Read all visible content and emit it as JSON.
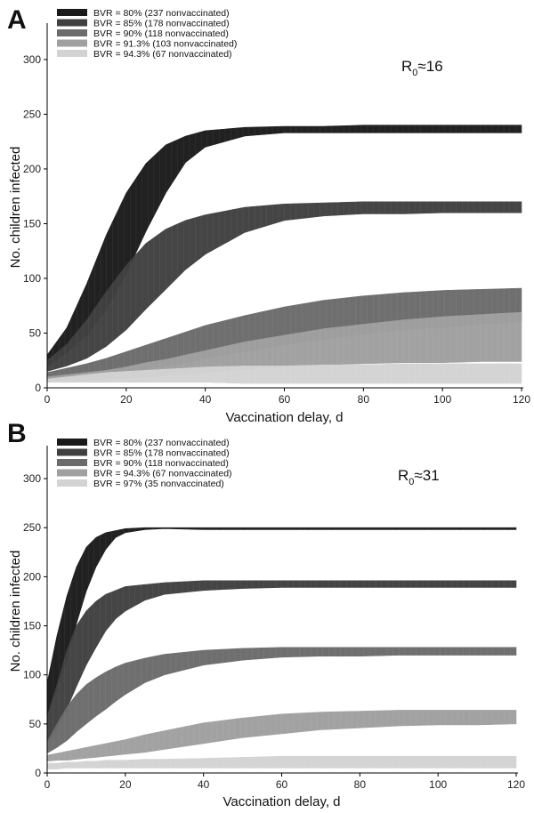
{
  "chart_data": [
    {
      "panel_label": "A",
      "type": "area",
      "annotation": {
        "base": "R",
        "subscript": "0",
        "text": "≈16"
      },
      "xlabel": "Vaccination delay, d",
      "ylabel": "No. children infected",
      "xlim": [
        0,
        120
      ],
      "ylim": [
        0,
        330
      ],
      "xticks": [
        0,
        20,
        40,
        60,
        80,
        100,
        120
      ],
      "yticks": [
        0,
        50,
        100,
        150,
        200,
        250,
        300
      ],
      "legend_position": "top-left",
      "x": [
        0,
        5,
        10,
        15,
        20,
        25,
        30,
        35,
        40,
        50,
        60,
        70,
        80,
        90,
        100,
        110,
        120
      ],
      "series": [
        {
          "name": "BVR = 80% (237 nonvaccinated)",
          "color": "#1a1a1a",
          "upper": [
            30,
            55,
            95,
            140,
            178,
            205,
            222,
            230,
            235,
            238,
            239,
            239,
            240,
            240,
            240,
            240,
            240
          ],
          "lower": [
            20,
            32,
            48,
            72,
            104,
            143,
            178,
            206,
            220,
            230,
            233,
            233,
            233,
            233,
            233,
            233,
            233
          ]
        },
        {
          "name": "BVR = 85% (178 nonvaccinated)",
          "color": "#404040",
          "upper": [
            25,
            40,
            62,
            88,
            112,
            132,
            145,
            153,
            158,
            165,
            168,
            169,
            170,
            170,
            170,
            170,
            170
          ],
          "lower": [
            15,
            20,
            27,
            38,
            53,
            72,
            90,
            108,
            122,
            142,
            153,
            157,
            159,
            159,
            160,
            160,
            160
          ]
        },
        {
          "name": "BVR = 90% (118 nonvaccinated)",
          "color": "#6b6b6b",
          "upper": [
            14,
            18,
            22,
            27,
            33,
            39,
            45,
            51,
            57,
            66,
            74,
            80,
            84,
            87,
            89,
            90,
            91
          ],
          "lower": [
            8,
            9,
            10,
            12,
            14,
            17,
            20,
            23,
            27,
            33,
            39,
            44,
            49,
            53,
            55,
            58,
            60
          ]
        },
        {
          "name": "BVR = 91.3% (103 nonvaccinated)",
          "color": "#a0a0a0",
          "upper": [
            10,
            12,
            14,
            16,
            19,
            23,
            26,
            30,
            34,
            42,
            48,
            54,
            58,
            62,
            65,
            67,
            69
          ],
          "lower": [
            6,
            6,
            7,
            8,
            9,
            10,
            11,
            12,
            14,
            17,
            19,
            21,
            22,
            23,
            23,
            24,
            24
          ]
        },
        {
          "name": "BVR = 94.3% (67 nonvaccinated)",
          "color": "#d3d3d3",
          "upper": [
            8,
            10,
            12,
            14,
            15,
            16,
            17,
            18,
            19,
            20,
            20,
            21,
            21,
            22,
            22,
            22,
            22
          ],
          "lower": [
            5,
            5,
            5,
            5,
            5,
            5,
            5,
            5,
            5,
            4,
            4,
            4,
            4,
            4,
            4,
            4,
            4
          ]
        }
      ]
    },
    {
      "panel_label": "B",
      "type": "area",
      "annotation": {
        "base": "R",
        "subscript": "0",
        "text": "≈31"
      },
      "xlabel": "Vaccination delay, d",
      "ylabel": "No. children infected",
      "xlim": [
        0,
        120
      ],
      "ylim": [
        0,
        330
      ],
      "xticks": [
        0,
        20,
        40,
        60,
        80,
        100,
        120
      ],
      "yticks": [
        0,
        50,
        100,
        150,
        200,
        250,
        300
      ],
      "legend_position": "top-left",
      "x": [
        0,
        2.5,
        5,
        7.5,
        10,
        12.5,
        15,
        17.5,
        20,
        25,
        30,
        40,
        50,
        60,
        70,
        80,
        90,
        100,
        110,
        120
      ],
      "series": [
        {
          "name": "BVR = 80% (237 nonvaccinated)",
          "color": "#1a1a1a",
          "upper": [
            92,
            140,
            180,
            210,
            230,
            240,
            245,
            247,
            249,
            250,
            250,
            250,
            250,
            250,
            250,
            250,
            250,
            250,
            250,
            250
          ],
          "lower": [
            58,
            85,
            115,
            152,
            185,
            210,
            228,
            240,
            245,
            248,
            249,
            248,
            248,
            248,
            248,
            248,
            248,
            248,
            248,
            248
          ]
        },
        {
          "name": "BVR = 85% (178 nonvaccinated)",
          "color": "#404040",
          "upper": [
            58,
            90,
            125,
            150,
            165,
            175,
            182,
            186,
            190,
            192,
            194,
            196,
            196,
            196,
            196,
            196,
            196,
            196,
            196,
            196
          ],
          "lower": [
            30,
            45,
            65,
            88,
            110,
            128,
            145,
            157,
            165,
            176,
            182,
            186,
            188,
            189,
            189,
            189,
            189,
            189,
            189,
            189
          ]
        },
        {
          "name": "BVR = 90% (118 nonvaccinated)",
          "color": "#6b6b6b",
          "upper": [
            32,
            50,
            67,
            80,
            90,
            97,
            103,
            108,
            112,
            117,
            121,
            125,
            127,
            128,
            128,
            128,
            128,
            128,
            128,
            128
          ],
          "lower": [
            20,
            26,
            33,
            42,
            50,
            58,
            65,
            73,
            80,
            92,
            100,
            110,
            115,
            118,
            119,
            119,
            120,
            120,
            120,
            120
          ]
        },
        {
          "name": "BVR = 94.3% (67 nonvaccinated)",
          "color": "#a0a0a0",
          "upper": [
            18,
            20,
            22,
            24,
            26,
            28,
            30,
            32,
            34,
            39,
            43,
            51,
            56,
            60,
            62,
            63,
            64,
            64,
            64,
            64
          ],
          "lower": [
            12,
            13,
            13,
            14,
            15,
            16,
            17,
            18,
            19,
            21,
            24,
            30,
            36,
            40,
            44,
            46,
            48,
            49,
            49,
            50
          ]
        },
        {
          "name": "BVR = 97% (35 nonvaccinated)",
          "color": "#d3d3d3",
          "upper": [
            10,
            10,
            11,
            11,
            12,
            12,
            13,
            13,
            13,
            14,
            14,
            15,
            16,
            17,
            17,
            17,
            17,
            17,
            17,
            17
          ],
          "lower": [
            4,
            4,
            5,
            5,
            5,
            5,
            5,
            5,
            5,
            5,
            5,
            5,
            5,
            5,
            5,
            5,
            5,
            5,
            5,
            5
          ]
        }
      ]
    }
  ]
}
